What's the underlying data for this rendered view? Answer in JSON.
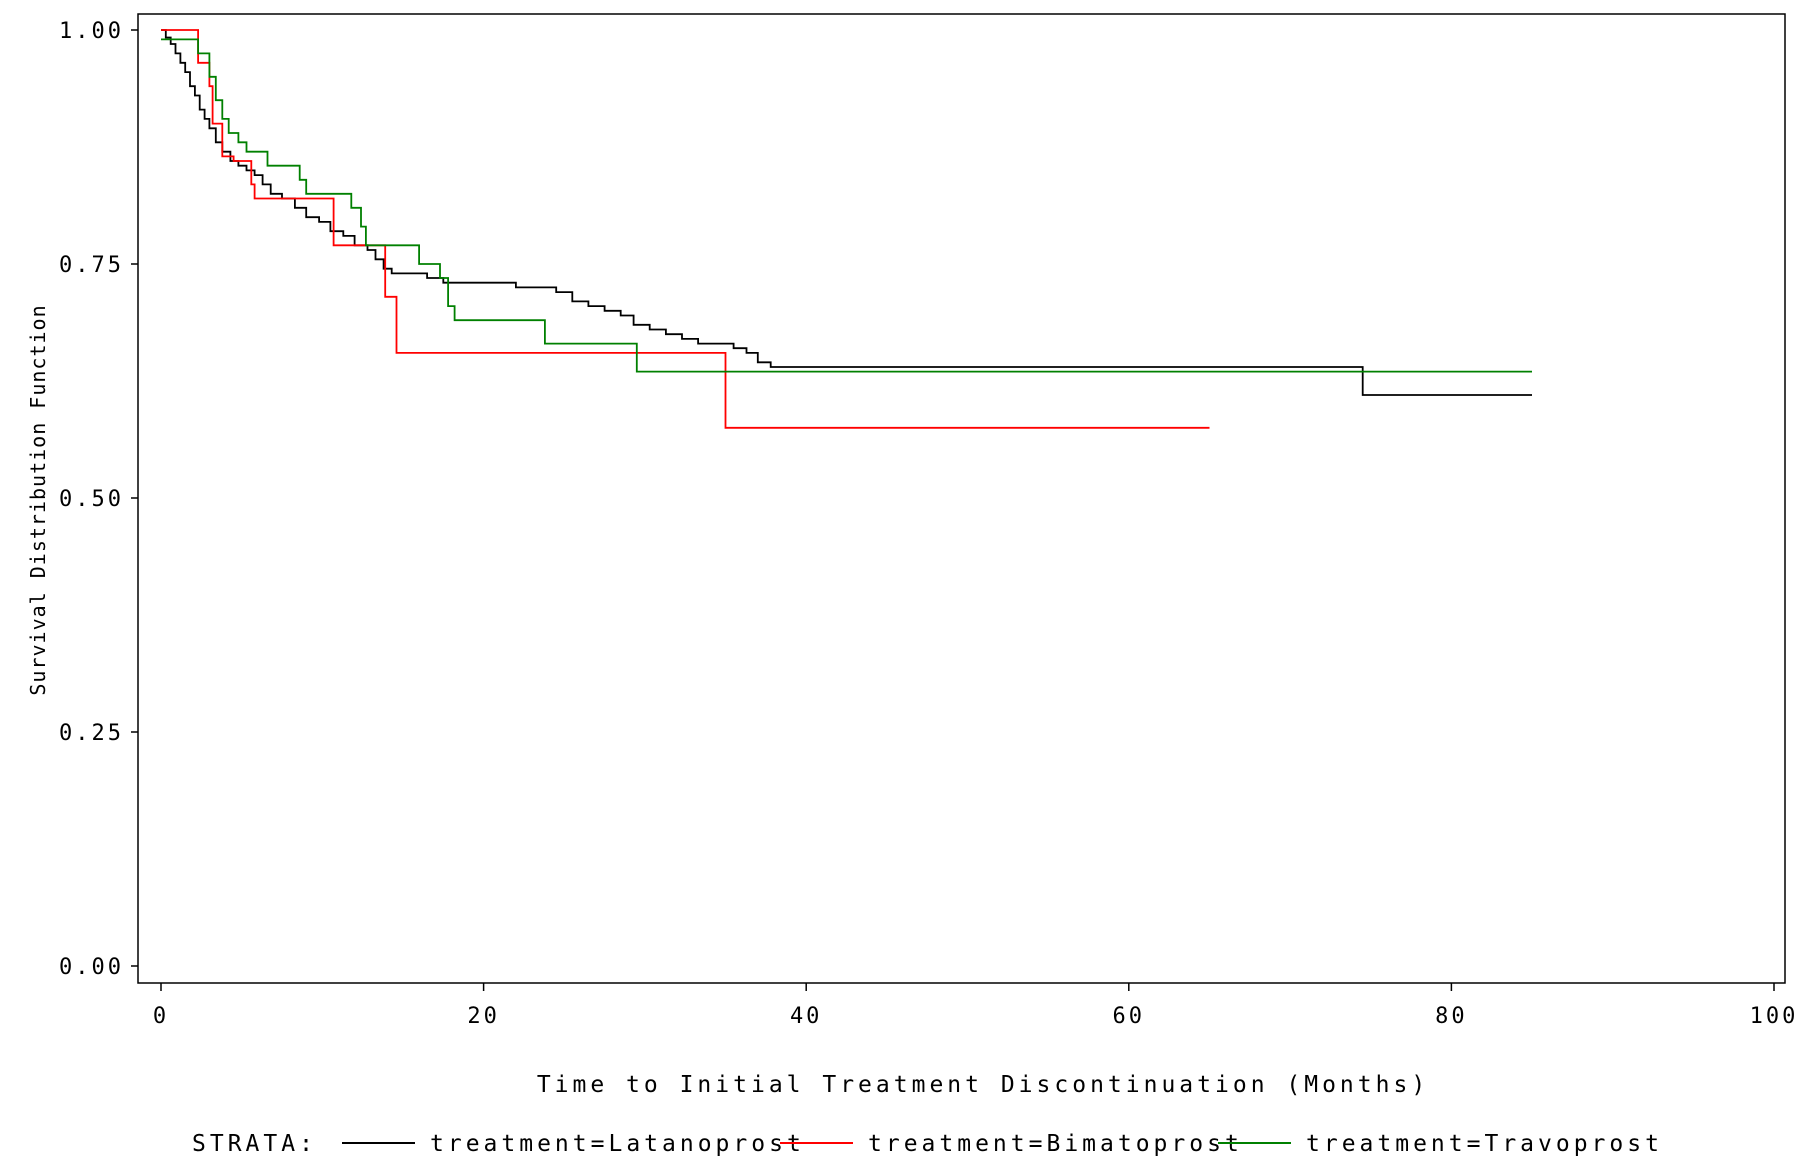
{
  "chart_data": {
    "type": "line",
    "title": "",
    "xlabel": "Time to Initial Treatment Discontinuation (Months)",
    "ylabel": "Survival Distribution Function",
    "xlim": [
      0,
      100
    ],
    "ylim": [
      0,
      1
    ],
    "x_ticks": [
      0,
      20,
      40,
      60,
      80,
      100
    ],
    "x_tick_labels": [
      "0",
      "20",
      "40",
      "60",
      "80",
      "100"
    ],
    "y_ticks": [
      0,
      0.25,
      0.5,
      0.75,
      1
    ],
    "y_tick_labels": [
      "0.00",
      "0.25",
      "0.50",
      "0.75",
      "1.00"
    ],
    "grid": false,
    "legend": {
      "position": "bottom",
      "title": "STRATA:",
      "entries": [
        "treatment=Latanoprost",
        "treatment=Bimatoprost",
        "treatment=Travoprost"
      ]
    },
    "series": [
      {
        "name": "treatment=Latanoprost",
        "color": "#000000",
        "points": [
          [
            0,
            1.0
          ],
          [
            0.3,
            0.992
          ],
          [
            0.6,
            0.985
          ],
          [
            0.9,
            0.975
          ],
          [
            1.2,
            0.965
          ],
          [
            1.5,
            0.955
          ],
          [
            1.8,
            0.94
          ],
          [
            2.1,
            0.93
          ],
          [
            2.4,
            0.915
          ],
          [
            2.7,
            0.905
          ],
          [
            3.0,
            0.895
          ],
          [
            3.4,
            0.88
          ],
          [
            3.8,
            0.87
          ],
          [
            4.3,
            0.86
          ],
          [
            4.8,
            0.855
          ],
          [
            5.3,
            0.85
          ],
          [
            5.8,
            0.845
          ],
          [
            6.3,
            0.835
          ],
          [
            6.8,
            0.825
          ],
          [
            7.5,
            0.82
          ],
          [
            8.3,
            0.81
          ],
          [
            9.0,
            0.8
          ],
          [
            9.8,
            0.795
          ],
          [
            10.5,
            0.785
          ],
          [
            11.3,
            0.78
          ],
          [
            12.0,
            0.77
          ],
          [
            12.8,
            0.765
          ],
          [
            13.3,
            0.755
          ],
          [
            13.8,
            0.745
          ],
          [
            14.3,
            0.74
          ],
          [
            16.5,
            0.735
          ],
          [
            17.5,
            0.73
          ],
          [
            22.0,
            0.725
          ],
          [
            24.5,
            0.72
          ],
          [
            25.5,
            0.71
          ],
          [
            26.5,
            0.705
          ],
          [
            27.5,
            0.7
          ],
          [
            28.5,
            0.695
          ],
          [
            29.3,
            0.685
          ],
          [
            30.3,
            0.68
          ],
          [
            31.3,
            0.675
          ],
          [
            32.3,
            0.67
          ],
          [
            33.3,
            0.665
          ],
          [
            35.5,
            0.66
          ],
          [
            36.3,
            0.655
          ],
          [
            37.0,
            0.645
          ],
          [
            37.8,
            0.64
          ],
          [
            74.5,
            0.61
          ],
          [
            85,
            0.61
          ]
        ]
      },
      {
        "name": "treatment=Bimatoprost",
        "color": "#ff0000",
        "points": [
          [
            0,
            1.0
          ],
          [
            2.3,
            0.965
          ],
          [
            3.0,
            0.94
          ],
          [
            3.2,
            0.9
          ],
          [
            3.8,
            0.865
          ],
          [
            4.5,
            0.86
          ],
          [
            5.6,
            0.835
          ],
          [
            5.8,
            0.82
          ],
          [
            10.7,
            0.77
          ],
          [
            13.9,
            0.715
          ],
          [
            14.6,
            0.655
          ],
          [
            35.0,
            0.575
          ],
          [
            65,
            0.575
          ]
        ]
      },
      {
        "name": "treatment=Travoprost",
        "color": "#008000",
        "points": [
          [
            0,
            0.99
          ],
          [
            2.3,
            0.975
          ],
          [
            3.0,
            0.95
          ],
          [
            3.4,
            0.925
          ],
          [
            3.8,
            0.905
          ],
          [
            4.2,
            0.89
          ],
          [
            4.8,
            0.88
          ],
          [
            5.3,
            0.87
          ],
          [
            6.6,
            0.855
          ],
          [
            8.6,
            0.84
          ],
          [
            9.0,
            0.825
          ],
          [
            11.8,
            0.81
          ],
          [
            12.4,
            0.79
          ],
          [
            12.7,
            0.77
          ],
          [
            16.0,
            0.75
          ],
          [
            17.3,
            0.735
          ],
          [
            17.8,
            0.705
          ],
          [
            18.2,
            0.69
          ],
          [
            23.8,
            0.665
          ],
          [
            29.5,
            0.635
          ],
          [
            85,
            0.635
          ]
        ]
      }
    ]
  }
}
